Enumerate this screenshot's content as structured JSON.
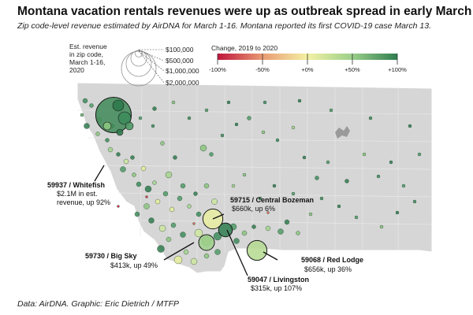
{
  "title": "Montana vacation rentals revenues were up as outbreak spread in early March",
  "subtitle": "Zip code-level revenue estimated by AirDNA for March 1-16. Montana reported its first COVID-19 case March 13.",
  "source": "Data: AirDNA. Graphic: Eric Dietrich / MTFP",
  "size_legend": {
    "label_lines": [
      "Est. revenue",
      "in zip code,",
      "March 1-16,",
      "2020"
    ],
    "entries": [
      {
        "label": "$100,000",
        "value": 100000
      },
      {
        "label": "$500,000",
        "value": 500000
      },
      {
        "label": "$1,000,000",
        "value": 1000000
      },
      {
        "label": "$2,000,000",
        "value": 2000000
      }
    ]
  },
  "color_legend": {
    "title": "Change, 2019 to 2020",
    "ticks": [
      {
        "label": "-100%",
        "value": -100
      },
      {
        "label": "-50%",
        "value": -50
      },
      {
        "label": "+0%",
        "value": 0
      },
      {
        "label": "+50%",
        "value": 50
      },
      {
        "label": "+100%",
        "value": 100
      }
    ],
    "colors": {
      "neg": "#c0143c",
      "mid": "#f4f1a4",
      "pos": "#2e7d4f"
    }
  },
  "callouts": [
    {
      "name": "whitefish",
      "zip_line": "59937 / Whitefish",
      "detail_lines": [
        "$2.1M in est.",
        "revenue, up 92%"
      ]
    },
    {
      "name": "central-bozeman",
      "zip_line": "59715 / Central Bozeman",
      "detail_lines": [
        "$660k, up 6%"
      ]
    },
    {
      "name": "big-sky",
      "zip_line": "59730 / Big Sky",
      "detail_lines": [
        "$413k, up 49%"
      ]
    },
    {
      "name": "red-lodge",
      "zip_line": "59068 / Red Lodge",
      "detail_lines": [
        "$656k, up 36%"
      ]
    },
    {
      "name": "livingston",
      "zip_line": "59047 / Livingston",
      "detail_lines": [
        "$315k, up 107%"
      ]
    }
  ],
  "map_data": {
    "highlighted": [
      {
        "zip": "59937",
        "revenue": 2100000,
        "change": 92
      },
      {
        "zip": "59715",
        "revenue": 660000,
        "change": 6
      },
      {
        "zip": "59730",
        "revenue": 413000,
        "change": 49
      },
      {
        "zip": "59068",
        "revenue": 656000,
        "change": 36
      },
      {
        "zip": "59047",
        "revenue": 315000,
        "change": 107
      }
    ]
  }
}
